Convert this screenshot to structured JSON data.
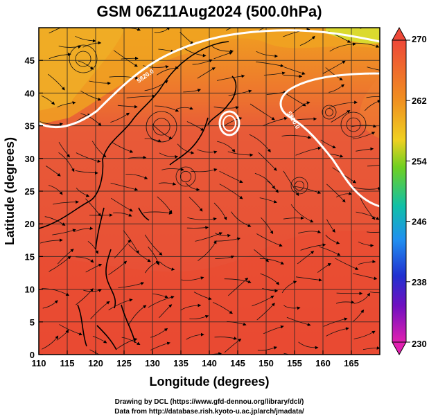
{
  "title": "GSM 06Z11Aug2024 (500.0hPa)",
  "x_axis_label": "Longitude (degrees)",
  "y_axis_label": "Latitude  (degrees)",
  "x_ticks": [
    "110",
    "115",
    "120",
    "125",
    "130",
    "135",
    "140",
    "145",
    "150",
    "155",
    "160",
    "165"
  ],
  "y_ticks": [
    "45",
    "40",
    "35",
    "30",
    "25",
    "20",
    "15",
    "10",
    "5",
    "0"
  ],
  "colorbar": {
    "ticks": [
      "270",
      "262",
      "254",
      "246",
      "238",
      "230"
    ],
    "colors": [
      "#e8483a",
      "#f08a1c",
      "#f0c020",
      "#88d020",
      "#20c040",
      "#10b8a8",
      "#2090f0",
      "#2040d0",
      "#6010c0",
      "#b010b0",
      "#e020b0"
    ]
  },
  "contour_label": "5820.0",
  "footer": {
    "line1": "Drawing by DCL (https://www.gfd-dennou.org/library/dcl/)",
    "line2": "Data from http://database.rish.kyoto-u.ac.jp/arch/jmadata/"
  },
  "chart_data": {
    "type": "heatmap",
    "variable": "temperature field with wind streamlines",
    "level": "500.0hPa",
    "xlim": [
      110,
      170
    ],
    "ylim": [
      0,
      50
    ],
    "colorbar_range": [
      230,
      270
    ],
    "field_description": "mostly red (~268-270) over the subtropics; orange/yellow (~262-264) north of 40N and in the northeast corner",
    "contours": [
      {
        "value": 5820.0,
        "color": "white"
      }
    ],
    "grid": true
  }
}
